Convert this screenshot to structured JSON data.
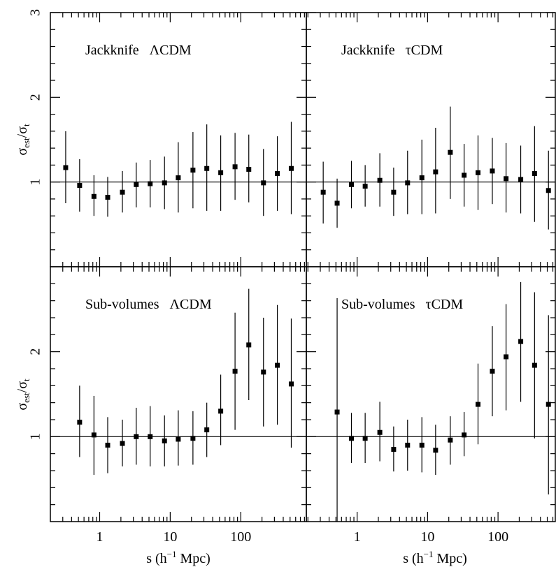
{
  "ylabel": [
    "σ",
    "est",
    "/σ",
    "t"
  ],
  "xlabel": [
    "s (h",
    "−1",
    " Mpc)"
  ],
  "chart_data": [
    {
      "type": "errorbar",
      "annotation": "Jackknife   ΛCDM",
      "x": [
        0.33,
        0.52,
        0.83,
        1.3,
        2.1,
        3.3,
        5.2,
        8.3,
        13,
        21,
        33,
        52,
        83,
        130,
        210,
        330,
        520
      ],
      "values": [
        1.17,
        0.96,
        0.83,
        0.82,
        0.88,
        0.97,
        0.98,
        0.99,
        1.05,
        1.14,
        1.16,
        1.11,
        1.18,
        1.15,
        0.99,
        1.1,
        1.16
      ],
      "low": [
        0.75,
        0.65,
        0.6,
        0.59,
        0.64,
        0.7,
        0.7,
        0.68,
        0.64,
        0.69,
        0.66,
        0.66,
        0.79,
        0.76,
        0.6,
        0.66,
        0.62
      ],
      "high": [
        1.6,
        1.27,
        1.08,
        1.06,
        1.13,
        1.23,
        1.26,
        1.3,
        1.47,
        1.59,
        1.68,
        1.55,
        1.58,
        1.56,
        1.39,
        1.54,
        1.71
      ],
      "xlim": [
        0.2,
        850
      ],
      "ylim": [
        0,
        3
      ],
      "xticks": [
        1,
        10,
        100
      ],
      "yticks": [
        1,
        2,
        3
      ],
      "xminor": [
        0.3,
        0.4,
        0.5,
        0.6,
        0.7,
        0.8,
        0.9,
        2,
        3,
        4,
        5,
        6,
        7,
        8,
        9,
        20,
        30,
        40,
        50,
        60,
        70,
        80,
        90,
        200,
        300,
        400,
        500,
        600,
        700,
        800
      ],
      "yminor": [
        0.2,
        0.4,
        0.6,
        0.8,
        1.2,
        1.4,
        1.6,
        1.8,
        2.2,
        2.4,
        2.6,
        2.8
      ],
      "hline": 1,
      "xticklabels": false,
      "yticklabels": true,
      "log_x": true
    },
    {
      "type": "errorbar",
      "annotation": "Jackknife   τCDM",
      "x": [
        0.33,
        0.52,
        0.83,
        1.3,
        2.1,
        3.3,
        5.2,
        8.3,
        13,
        21,
        33,
        52,
        83,
        130,
        210,
        330,
        520
      ],
      "values": [
        0.88,
        0.75,
        0.97,
        0.95,
        1.02,
        0.88,
        0.99,
        1.05,
        1.12,
        1.35,
        1.08,
        1.11,
        1.13,
        1.04,
        1.03,
        1.1,
        0.9
      ],
      "low": [
        0.51,
        0.46,
        0.69,
        0.71,
        0.71,
        0.6,
        0.62,
        0.62,
        0.63,
        0.8,
        0.71,
        0.67,
        0.74,
        0.64,
        0.63,
        0.53,
        0.44
      ],
      "high": [
        1.24,
        1.04,
        1.25,
        1.2,
        1.34,
        1.17,
        1.37,
        1.5,
        1.64,
        1.89,
        1.45,
        1.55,
        1.52,
        1.46,
        1.43,
        1.66,
        1.37
      ],
      "xlim": [
        0.19,
        650
      ],
      "ylim": [
        0,
        3
      ],
      "xticks": [
        1,
        10,
        100
      ],
      "yticks": [
        1,
        2,
        3
      ],
      "xminor": [
        0.2,
        0.3,
        0.4,
        0.5,
        0.6,
        0.7,
        0.8,
        0.9,
        2,
        3,
        4,
        5,
        6,
        7,
        8,
        9,
        20,
        30,
        40,
        50,
        60,
        70,
        80,
        90,
        200,
        300,
        400,
        500,
        600
      ],
      "yminor": [
        0.2,
        0.4,
        0.6,
        0.8,
        1.2,
        1.4,
        1.6,
        1.8,
        2.2,
        2.4,
        2.6,
        2.8
      ],
      "hline": 1,
      "xticklabels": false,
      "yticklabels": false,
      "log_x": true
    },
    {
      "type": "errorbar",
      "annotation": "Sub-volumes   ΛCDM",
      "x": [
        0.52,
        0.83,
        1.3,
        2.1,
        3.3,
        5.2,
        8.3,
        13,
        21,
        33,
        52,
        83,
        130,
        210,
        330,
        520
      ],
      "values": [
        1.17,
        1.02,
        0.9,
        0.92,
        1.0,
        1.0,
        0.95,
        0.97,
        0.98,
        1.08,
        1.3,
        1.77,
        2.08,
        1.76,
        1.84,
        1.62
      ],
      "low": [
        0.76,
        0.55,
        0.57,
        0.65,
        0.67,
        0.65,
        0.65,
        0.66,
        0.67,
        0.76,
        0.9,
        1.08,
        1.43,
        1.12,
        1.14,
        0.87
      ],
      "high": [
        1.6,
        1.48,
        1.23,
        1.2,
        1.34,
        1.36,
        1.25,
        1.31,
        1.3,
        1.4,
        1.73,
        2.46,
        2.74,
        2.4,
        2.55,
        2.39
      ],
      "xlim": [
        0.2,
        850
      ],
      "ylim": [
        0,
        3
      ],
      "xticks": [
        1,
        10,
        100
      ],
      "yticks": [
        1,
        2
      ],
      "xminor": [
        0.3,
        0.4,
        0.5,
        0.6,
        0.7,
        0.8,
        0.9,
        2,
        3,
        4,
        5,
        6,
        7,
        8,
        9,
        20,
        30,
        40,
        50,
        60,
        70,
        80,
        90,
        200,
        300,
        400,
        500,
        600,
        700,
        800
      ],
      "yminor": [
        0.2,
        0.4,
        0.6,
        0.8,
        1.2,
        1.4,
        1.6,
        1.8,
        2.2,
        2.4,
        2.6,
        2.8
      ],
      "hline": 1,
      "xticklabels": true,
      "yticklabels": true,
      "log_x": true
    },
    {
      "type": "errorbar",
      "annotation": "Sub-volumes   τCDM",
      "x": [
        0.52,
        0.83,
        1.3,
        2.1,
        3.3,
        5.2,
        8.3,
        13,
        21,
        33,
        52,
        83,
        130,
        210,
        330,
        520
      ],
      "values": [
        1.29,
        0.98,
        0.98,
        1.05,
        0.85,
        0.9,
        0.9,
        0.84,
        0.96,
        1.02,
        1.38,
        1.77,
        1.94,
        2.12,
        1.84,
        1.38
      ],
      "low": [
        0,
        0.69,
        0.69,
        0.71,
        0.59,
        0.6,
        0.58,
        0.55,
        0.67,
        0.77,
        0.91,
        1.24,
        1.31,
        1.41,
        0.98,
        0.32
      ],
      "high": [
        2.63,
        1.28,
        1.28,
        1.41,
        1.12,
        1.2,
        1.23,
        1.14,
        1.24,
        1.29,
        1.86,
        2.3,
        2.56,
        2.82,
        2.7,
        2.43
      ],
      "xlim": [
        0.19,
        650
      ],
      "ylim": [
        0,
        3
      ],
      "xticks": [
        1,
        10,
        100
      ],
      "yticks": [
        1,
        2
      ],
      "xminor": [
        0.2,
        0.3,
        0.4,
        0.5,
        0.6,
        0.7,
        0.8,
        0.9,
        2,
        3,
        4,
        5,
        6,
        7,
        8,
        9,
        20,
        30,
        40,
        50,
        60,
        70,
        80,
        90,
        200,
        300,
        400,
        500,
        600
      ],
      "yminor": [
        0.2,
        0.4,
        0.6,
        0.8,
        1.2,
        1.4,
        1.6,
        1.8,
        2.2,
        2.4,
        2.6,
        2.8
      ],
      "hline": 1,
      "xticklabels": true,
      "yticklabels": false,
      "log_x": true
    }
  ]
}
